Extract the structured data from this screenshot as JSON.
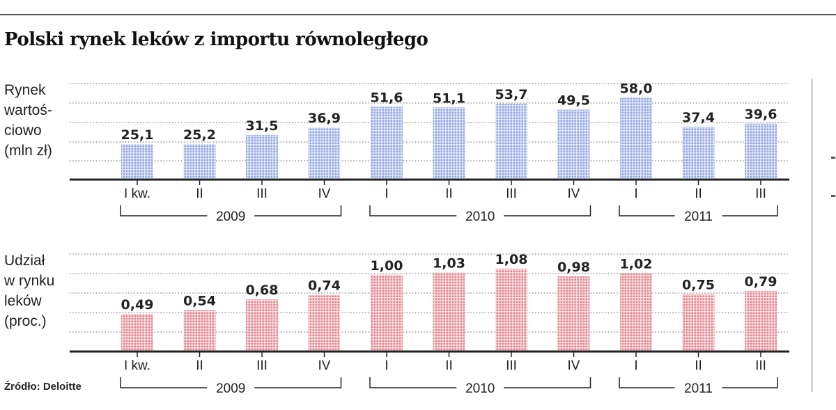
{
  "title": "Polski rynek leków z importu równoległego",
  "source": "Źródło: Deloitte",
  "colors": {
    "blue_bar": "#9fb2e8",
    "red_bar": "#e88e96",
    "gridline": "#999999",
    "axis": "#222222"
  },
  "chart_data": [
    {
      "type": "bar",
      "title": "Rynek wartościowo (mln zł)",
      "label_lines": [
        "Rynek",
        "wartoś-",
        "ciowo",
        "(mln zł)"
      ],
      "categories": [
        "I kw.",
        "II",
        "III",
        "IV",
        "I",
        "II",
        "III",
        "IV",
        "I",
        "II",
        "III"
      ],
      "values": [
        25.1,
        25.2,
        31.5,
        36.9,
        51.6,
        51.1,
        53.7,
        49.5,
        58.0,
        37.4,
        39.6
      ],
      "value_labels": [
        "25,1",
        "25,2",
        "31,5",
        "36,9",
        "51,6",
        "51,1",
        "53,7",
        "49,5",
        "58,0",
        "37,4",
        "39,6"
      ],
      "years": [
        {
          "label": "2009",
          "from": 0,
          "to": 3
        },
        {
          "label": "2010",
          "from": 4,
          "to": 7
        },
        {
          "label": "2011",
          "from": 8,
          "to": 10
        }
      ],
      "ylim": [
        0,
        68
      ],
      "grid": true
    },
    {
      "type": "bar",
      "title": "Udział w rynku leków (proc.)",
      "label_lines": [
        "Udział",
        "w rynku",
        "leków",
        "(proc.)"
      ],
      "categories": [
        "I kw.",
        "II",
        "III",
        "IV",
        "I",
        "II",
        "III",
        "IV",
        "I",
        "II",
        "III"
      ],
      "values": [
        0.49,
        0.54,
        0.68,
        0.74,
        1.0,
        1.03,
        1.08,
        0.98,
        1.02,
        0.75,
        0.79
      ],
      "value_labels": [
        "0,49",
        "0,54",
        "0,68",
        "0,74",
        "1,00",
        "1,03",
        "1,08",
        "0,98",
        "1,02",
        "0,75",
        "0,79"
      ],
      "years": [
        {
          "label": "2009",
          "from": 0,
          "to": 3
        },
        {
          "label": "2010",
          "from": 4,
          "to": 7
        },
        {
          "label": "2011",
          "from": 8,
          "to": 10
        }
      ],
      "ylim": [
        0,
        1.27
      ],
      "grid": true
    }
  ]
}
